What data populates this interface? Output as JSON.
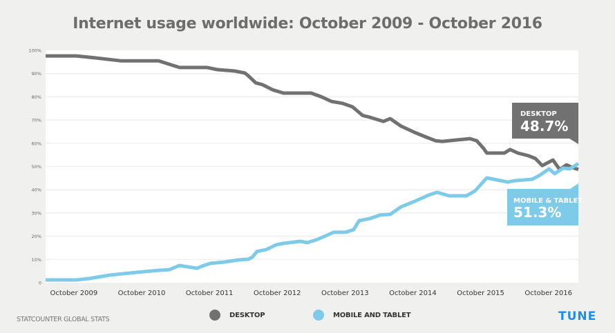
{
  "header": {
    "title": "Internet usage worldwide: October 2009 - October 2016"
  },
  "footer": {
    "source": "STATCOUNTER GLOBAL STATS",
    "logo": "TUNE"
  },
  "colors": {
    "desktop": "#717171",
    "mobile": "#7ecae9",
    "logo": "#1a8ef0",
    "background": "#f0f0ef",
    "plot": "#ffffff",
    "grid": "#efefef"
  },
  "chart_data": {
    "type": "line",
    "title": "Internet usage worldwide: October 2009 - October 2016",
    "xlabel": "",
    "ylabel": "",
    "ylim": [
      0,
      100
    ],
    "yticks": [
      "0",
      "10%",
      "20%",
      "30%",
      "40%",
      "50%",
      "60%",
      "70%",
      "80%",
      "90%",
      "100%"
    ],
    "xticks": [
      {
        "label": "October 2009",
        "month": 5
      },
      {
        "label": "October 2010",
        "month": 17
      },
      {
        "label": "October 2011",
        "month": 29
      },
      {
        "label": "October 2012",
        "month": 41
      },
      {
        "label": "October 2013",
        "month": 53
      },
      {
        "label": "October 2014",
        "month": 65
      },
      {
        "label": "October 2015",
        "month": 77
      },
      {
        "label": "October 2016",
        "month": 89
      }
    ],
    "xlim": [
      0,
      94.3
    ],
    "x_unit": "months since May 2009",
    "grid": true,
    "legend": "bottom",
    "series": [
      {
        "name": "DESKTOP",
        "color": "#717171",
        "points": [
          [
            0,
            97.6
          ],
          [
            5.4,
            97.6
          ],
          [
            9.0,
            96.7
          ],
          [
            13.3,
            95.5
          ],
          [
            20.0,
            95.5
          ],
          [
            23.7,
            92.6
          ],
          [
            28.6,
            92.6
          ],
          [
            30.4,
            91.7
          ],
          [
            33.5,
            91.1
          ],
          [
            35.3,
            90.2
          ],
          [
            35.9,
            89.0
          ],
          [
            37.2,
            86.0
          ],
          [
            38.4,
            85.2
          ],
          [
            40.2,
            83.0
          ],
          [
            42.1,
            81.6
          ],
          [
            47.0,
            81.6
          ],
          [
            48.8,
            80.0
          ],
          [
            50.6,
            78.0
          ],
          [
            52.5,
            77.2
          ],
          [
            54.3,
            75.7
          ],
          [
            56.1,
            72.0
          ],
          [
            57.4,
            71.2
          ],
          [
            59.8,
            69.4
          ],
          [
            61.0,
            70.6
          ],
          [
            62.9,
            67.4
          ],
          [
            65.3,
            64.7
          ],
          [
            67.1,
            62.9
          ],
          [
            69.0,
            61.1
          ],
          [
            70.2,
            60.8
          ],
          [
            72.6,
            61.4
          ],
          [
            75.1,
            62.0
          ],
          [
            76.3,
            61.1
          ],
          [
            77.5,
            57.9
          ],
          [
            78.1,
            55.8
          ],
          [
            81.2,
            55.8
          ],
          [
            82.2,
            57.3
          ],
          [
            83.6,
            55.8
          ],
          [
            85.5,
            54.6
          ],
          [
            86.7,
            53.4
          ],
          [
            87.9,
            50.4
          ],
          [
            89.8,
            52.8
          ],
          [
            91.0,
            48.7
          ],
          [
            92.2,
            50.7
          ],
          [
            93.2,
            49.6
          ],
          [
            94.3,
            48.7
          ]
        ]
      },
      {
        "name": "MOBILE AND TABLET",
        "color": "#7ecae9",
        "points": [
          [
            0,
            1.2
          ],
          [
            5.4,
            1.2
          ],
          [
            7.8,
            1.8
          ],
          [
            11.5,
            3.3
          ],
          [
            16.4,
            4.5
          ],
          [
            20.0,
            5.3
          ],
          [
            21.9,
            5.6
          ],
          [
            23.7,
            7.4
          ],
          [
            26.8,
            6.2
          ],
          [
            28.0,
            7.4
          ],
          [
            29.2,
            8.3
          ],
          [
            31.7,
            8.9
          ],
          [
            34.1,
            9.8
          ],
          [
            35.9,
            10.1
          ],
          [
            36.6,
            11.0
          ],
          [
            37.4,
            13.4
          ],
          [
            39.0,
            14.2
          ],
          [
            40.8,
            16.3
          ],
          [
            42.1,
            16.9
          ],
          [
            45.1,
            17.8
          ],
          [
            46.3,
            17.2
          ],
          [
            48.2,
            18.7
          ],
          [
            51.0,
            21.7
          ],
          [
            53.1,
            21.7
          ],
          [
            54.5,
            22.8
          ],
          [
            55.5,
            26.7
          ],
          [
            57.4,
            27.6
          ],
          [
            59.2,
            29.1
          ],
          [
            61.0,
            29.4
          ],
          [
            62.9,
            32.6
          ],
          [
            65.3,
            35.0
          ],
          [
            67.8,
            37.7
          ],
          [
            69.3,
            38.9
          ],
          [
            71.4,
            37.4
          ],
          [
            74.5,
            37.4
          ],
          [
            76.0,
            39.5
          ],
          [
            78.1,
            45.1
          ],
          [
            79.9,
            44.2
          ],
          [
            81.8,
            43.3
          ],
          [
            83.0,
            43.9
          ],
          [
            86.1,
            44.5
          ],
          [
            87.3,
            46.0
          ],
          [
            89.1,
            49.0
          ],
          [
            90.1,
            46.9
          ],
          [
            91.6,
            49.3
          ],
          [
            92.8,
            49.0
          ],
          [
            94.3,
            51.3
          ]
        ]
      }
    ],
    "annotations": [
      {
        "series": "DESKTOP",
        "label": "DESKTOP",
        "value": "48.7%"
      },
      {
        "series": "MOBILE AND TABLET",
        "label": "MOBILE & TABLET",
        "value": "51.3%"
      }
    ],
    "legend_entries": [
      "DESKTOP",
      "MOBILE AND TABLET"
    ]
  }
}
